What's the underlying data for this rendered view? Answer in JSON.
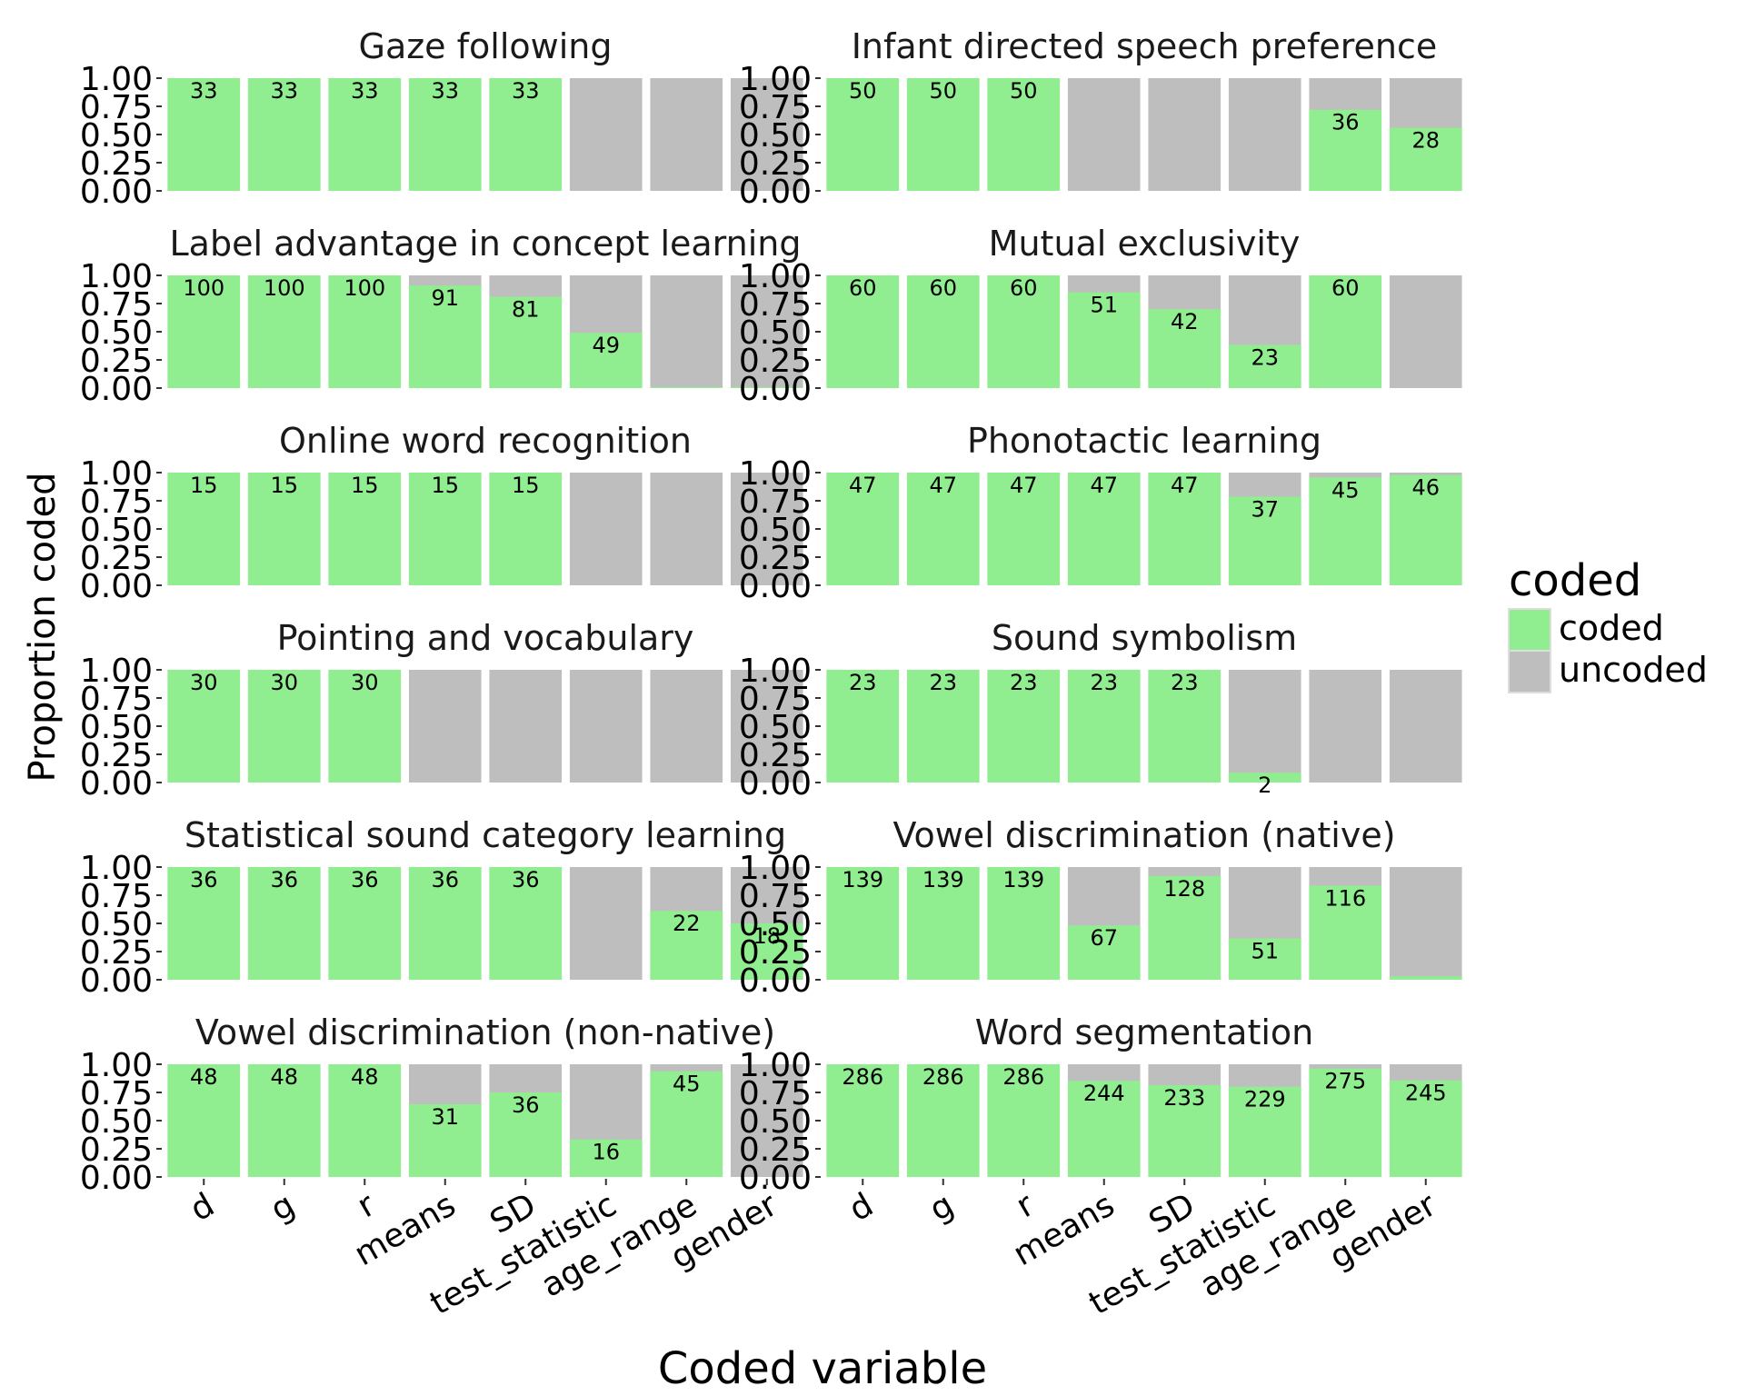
{
  "chart_data": {
    "type": "bar",
    "stacked": true,
    "facet_layout": {
      "columns": 2,
      "rows": 6
    },
    "xlabel": "Coded variable",
    "ylabel": "Proportion coded",
    "ylim": [
      0,
      1
    ],
    "yticks": [
      "0.00",
      "0.25",
      "0.50",
      "0.75",
      "1.00"
    ],
    "categories": [
      "d",
      "g",
      "r",
      "means",
      "SD",
      "test_statistic",
      "age_range",
      "gender"
    ],
    "legend": {
      "title": "coded",
      "position": "right",
      "items": [
        {
          "label": "coded",
          "color": "#90ee90"
        },
        {
          "label": "uncoded",
          "color": "#bebebe"
        }
      ]
    },
    "panels": [
      {
        "title": "Gaze following",
        "proportions": [
          1,
          1,
          1,
          1,
          1,
          0,
          0,
          0
        ],
        "counts": [
          "33",
          "33",
          "33",
          "33",
          "33",
          null,
          null,
          null
        ]
      },
      {
        "title": "Infant directed speech preference",
        "proportions": [
          1,
          1,
          1,
          0,
          0,
          0,
          0.72,
          0.56
        ],
        "counts": [
          "50",
          "50",
          "50",
          null,
          null,
          null,
          "36",
          "28"
        ]
      },
      {
        "title": "Label advantage in concept learning",
        "proportions": [
          1,
          1,
          1,
          0.91,
          0.81,
          0.49,
          0.01,
          0.01
        ],
        "counts": [
          "100",
          "100",
          "100",
          "91",
          "81",
          "49",
          null,
          null
        ]
      },
      {
        "title": "Mutual exclusivity",
        "proportions": [
          1,
          1,
          1,
          0.85,
          0.7,
          0.383,
          1,
          0
        ],
        "counts": [
          "60",
          "60",
          "60",
          "51",
          "42",
          "23",
          "60",
          null
        ]
      },
      {
        "title": "Online word recognition",
        "proportions": [
          1,
          1,
          1,
          1,
          1,
          0,
          0,
          0
        ],
        "counts": [
          "15",
          "15",
          "15",
          "15",
          "15",
          null,
          null,
          null
        ]
      },
      {
        "title": "Phonotactic learning",
        "proportions": [
          1,
          1,
          1,
          1,
          1,
          0.787,
          0.957,
          0.979
        ],
        "counts": [
          "47",
          "47",
          "47",
          "47",
          "47",
          "37",
          "45",
          "46"
        ]
      },
      {
        "title": "Pointing and vocabulary",
        "proportions": [
          1,
          1,
          1,
          0,
          0,
          0,
          0,
          0
        ],
        "counts": [
          "30",
          "30",
          "30",
          null,
          null,
          null,
          null,
          null
        ]
      },
      {
        "title": "Sound symbolism",
        "proportions": [
          1,
          1,
          1,
          1,
          1,
          0.087,
          0,
          0
        ],
        "counts": [
          "23",
          "23",
          "23",
          "23",
          "23",
          "2",
          null,
          null
        ]
      },
      {
        "title": "Statistical sound category learning",
        "proportions": [
          1,
          1,
          1,
          1,
          1,
          0,
          0.611,
          0.5
        ],
        "counts": [
          "36",
          "36",
          "36",
          "36",
          "36",
          null,
          "22",
          "18"
        ]
      },
      {
        "title": "Vowel discrimination (native)",
        "proportions": [
          1,
          1,
          1,
          0.482,
          0.921,
          0.367,
          0.835,
          0.03
        ],
        "counts": [
          "139",
          "139",
          "139",
          "67",
          "128",
          "51",
          "116",
          null
        ]
      },
      {
        "title": "Vowel discrimination (non-native)",
        "proportions": [
          1,
          1,
          1,
          0.646,
          0.75,
          0.333,
          0.938,
          0
        ],
        "counts": [
          "48",
          "48",
          "48",
          "31",
          "36",
          "16",
          "45",
          null
        ]
      },
      {
        "title": "Word segmentation",
        "proportions": [
          1,
          1,
          1,
          0.853,
          0.815,
          0.801,
          0.962,
          0.857
        ],
        "counts": [
          "286",
          "286",
          "286",
          "244",
          "233",
          "229",
          "275",
          "245"
        ]
      }
    ]
  }
}
